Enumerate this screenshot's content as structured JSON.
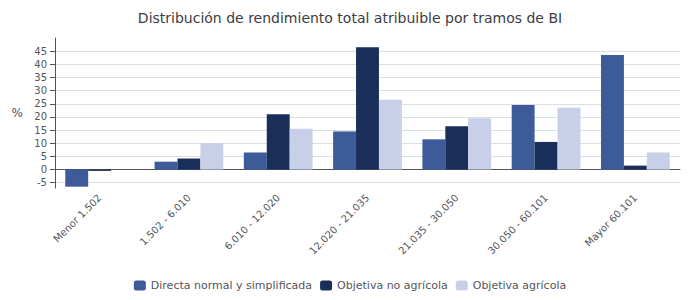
{
  "chart_data": {
    "type": "bar",
    "title": "Distribución de rendimiento total atribuible por tramos de BI",
    "categories": [
      "Menor 1.502",
      "1.502 - 6.010",
      "6.010 - 12.020",
      "12.020 - 21.035",
      "21.035 - 30.050",
      "30.050 - 60.101",
      "Mayor 60.101"
    ],
    "series": [
      {
        "name": "Directa normal y simplificada",
        "color": "#3d5a99",
        "values": [
          -6.5,
          3.0,
          6.5,
          14.5,
          11.5,
          24.5,
          43.5
        ]
      },
      {
        "name": "Objetiva no agrícola",
        "color": "#1a2e5a",
        "values": [
          -0.5,
          4.2,
          21.0,
          46.5,
          16.5,
          10.5,
          1.5
        ]
      },
      {
        "name": "Objetiva agrícola",
        "color": "#c8cfe8",
        "values": [
          0.0,
          10.0,
          15.5,
          26.5,
          19.5,
          23.5,
          6.5
        ]
      }
    ],
    "ylabel": "%",
    "ylim": [
      -7,
      50
    ],
    "yticks": [
      -5,
      0,
      5,
      10,
      15,
      20,
      25,
      30,
      35,
      40,
      45
    ],
    "grid": true,
    "legend": "bottom"
  }
}
